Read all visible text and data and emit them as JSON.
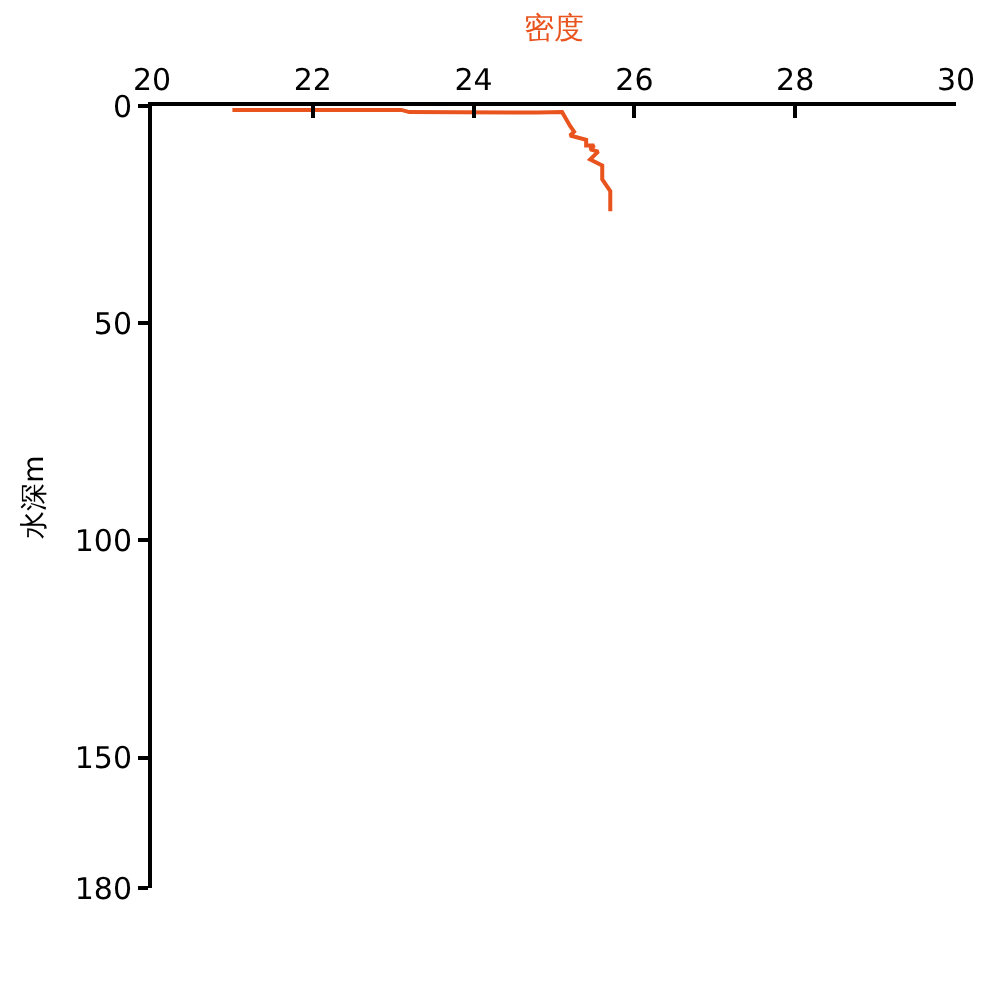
{
  "chart_data": {
    "type": "line",
    "xlabel": "密度",
    "ylabel": "水深m",
    "xlim": [
      20,
      30
    ],
    "xticks": [
      20,
      22,
      24,
      26,
      28,
      30
    ],
    "ylim": [
      180,
      0
    ],
    "yticks": [
      0,
      50,
      100,
      150,
      180
    ],
    "marker": "none",
    "line_style": "solid",
    "series": [
      {
        "color": "#e8531e",
        "x": [
          21.0,
          23.1,
          23.2,
          24.8,
          25.1,
          25.2,
          25.25,
          25.2,
          25.4,
          25.4,
          25.5,
          25.45,
          25.55,
          25.45,
          25.6,
          25.6,
          25.7,
          25.7
        ],
        "values": [
          0.9,
          0.9,
          1.4,
          1.5,
          1.4,
          4.6,
          5.9,
          6.8,
          7.8,
          9.1,
          9.1,
          10.0,
          10.5,
          12.3,
          13.7,
          16.9,
          19.6,
          24.2
        ]
      }
    ]
  }
}
